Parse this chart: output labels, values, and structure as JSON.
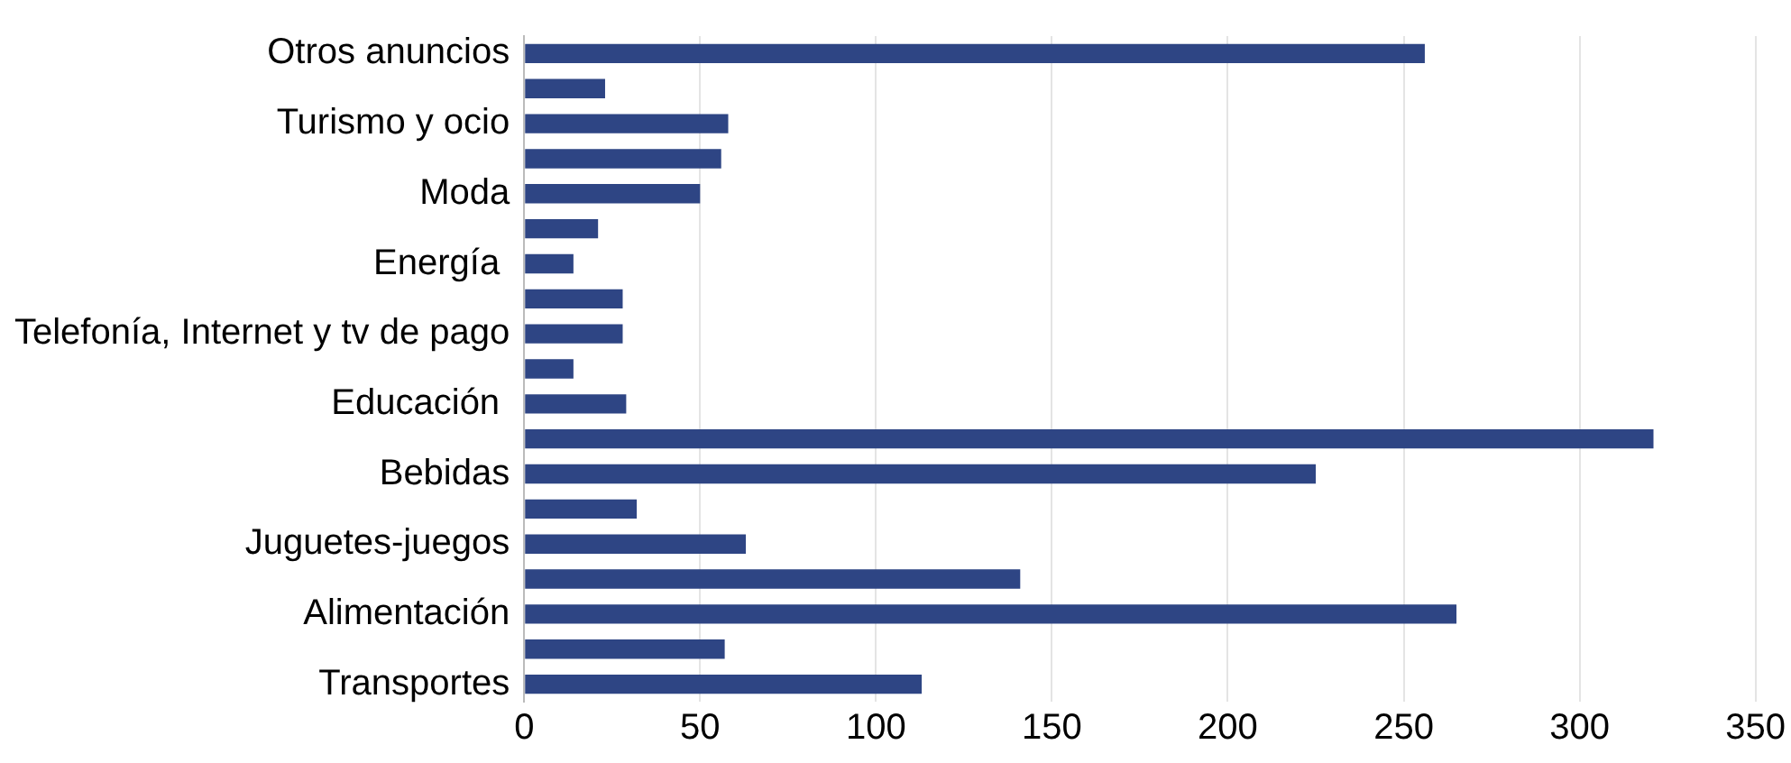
{
  "chart_data": {
    "type": "bar",
    "orientation": "horizontal",
    "categories": [
      "Otros anuncios",
      null,
      "Turismo y ocio",
      null,
      "Moda",
      null,
      "Energía ",
      null,
      "Telefonía, Internet y tv de pago",
      null,
      "Educación ",
      null,
      "Bebidas",
      null,
      "Juguetes-juegos",
      null,
      "Alimentación",
      null,
      "Transportes"
    ],
    "values": [
      256,
      23,
      58,
      56,
      50,
      21,
      14,
      28,
      28,
      14,
      29,
      321,
      225,
      32,
      63,
      141,
      265,
      57,
      113
    ],
    "color": "#2e4584",
    "xlim": [
      0,
      350
    ],
    "xticks": [
      0,
      50,
      100,
      150,
      200,
      250,
      300,
      350
    ],
    "grid": "x",
    "legend": false
  }
}
